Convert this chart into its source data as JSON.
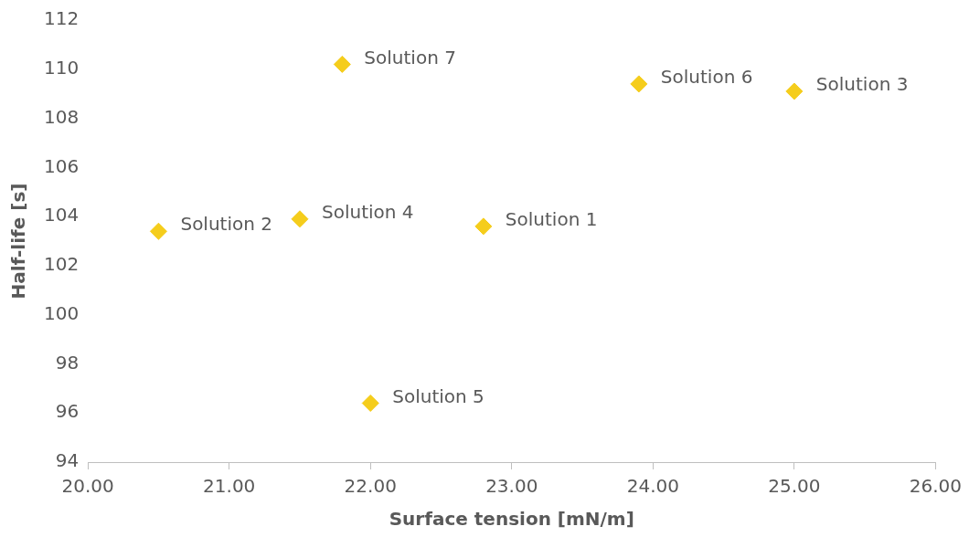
{
  "chart_data": {
    "type": "scatter",
    "xlabel": "Surface tension [mN/m]",
    "ylabel": "Half-life [s]",
    "x": [
      22.8,
      20.5,
      25.0,
      21.5,
      22.0,
      23.9,
      21.8
    ],
    "series": [
      {
        "color": "#f5cd1c",
        "values": [
          103.6,
          103.4,
          109.1,
          103.9,
          96.4,
          109.4,
          110.2
        ]
      }
    ],
    "xlim": [
      20,
      26
    ],
    "xticks": [
      {
        "value": 20,
        "label": "20.00"
      },
      {
        "value": 21,
        "label": "21.00"
      },
      {
        "value": 22,
        "label": "22.00"
      },
      {
        "value": 23,
        "label": "23.00"
      },
      {
        "value": 24,
        "label": "24.00"
      },
      {
        "value": 25,
        "label": "25.00"
      },
      {
        "value": 26,
        "label": "26.00"
      }
    ],
    "ylim": [
      94,
      112
    ],
    "yticks": [
      94,
      96,
      98,
      100,
      102,
      104,
      106,
      108,
      110,
      112
    ],
    "grid": false,
    "legend": false,
    "marker": "diamond",
    "annotations": [
      {
        "text": "Solution 1",
        "x": 22.8,
        "y": 103.6
      },
      {
        "text": "Solution 2",
        "x": 20.5,
        "y": 103.4
      },
      {
        "text": "Solution 3",
        "x": 25.0,
        "y": 109.1
      },
      {
        "text": "Solution 4",
        "x": 21.5,
        "y": 103.9
      },
      {
        "text": "Solution 5",
        "x": 22.0,
        "y": 96.4
      },
      {
        "text": "Solution 6",
        "x": 23.9,
        "y": 109.4
      },
      {
        "text": "Solution 7",
        "x": 21.8,
        "y": 110.2
      }
    ]
  }
}
